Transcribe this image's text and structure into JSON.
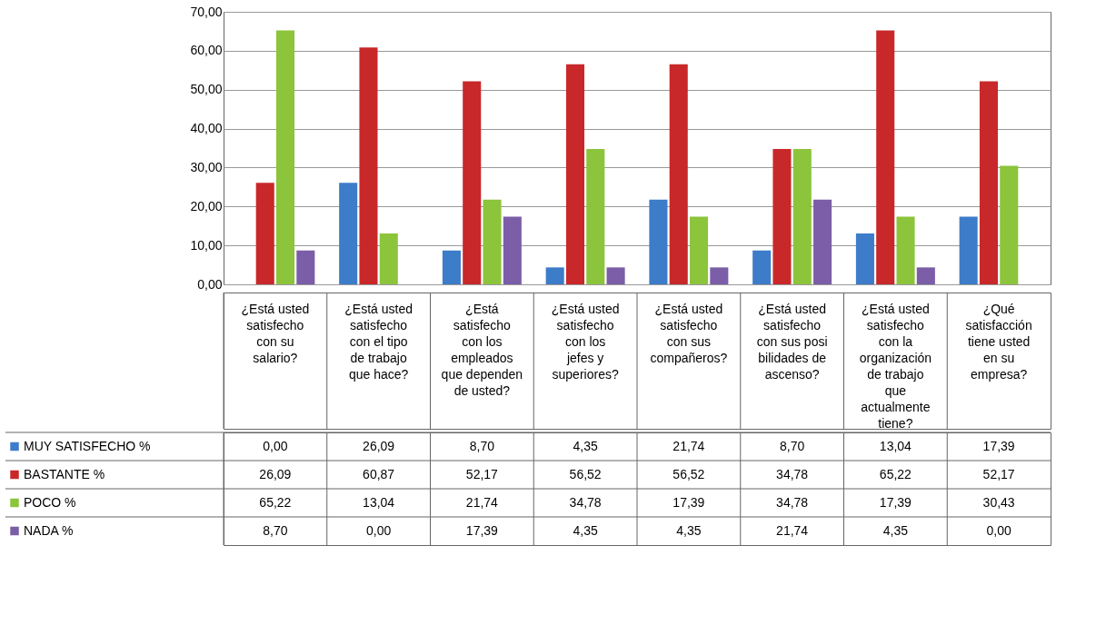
{
  "chart_data": {
    "type": "bar",
    "categories": [
      "¿Está usted satisfecho con su salario?",
      "¿Está usted satisfecho con el tipo de trabajo que hace?",
      "¿Está satisfecho con los empleados que dependen de usted?",
      "¿Está usted satisfecho con los jefes y superiores?",
      "¿Está usted satisfecho con sus compañeros?",
      "¿Está usted satisfecho con sus posibilidades de ascenso?",
      "¿Está usted satisfecho con la organización de trabajo que actualmente tiene?",
      "¿Qué satisfacción tiene usted en su empresa?"
    ],
    "series": [
      {
        "name": "MUY SATISFECHO %",
        "color": "#3d7cc9",
        "values": [
          0,
          26.09,
          8.7,
          4.35,
          21.74,
          8.7,
          13.04,
          17.39
        ],
        "value_labels": [
          "0,00",
          "26,09",
          "8,70",
          "4,35",
          "21,74",
          "8,70",
          "13,04",
          "17,39"
        ]
      },
      {
        "name": "BASTANTE %",
        "color": "#c8282a",
        "values": [
          26.09,
          60.87,
          52.17,
          56.52,
          56.52,
          34.78,
          65.22,
          52.17
        ],
        "value_labels": [
          "26,09",
          "60,87",
          "52,17",
          "56,52",
          "56,52",
          "34,78",
          "65,22",
          "52,17"
        ]
      },
      {
        "name": "POCO %",
        "color": "#8cc43c",
        "values": [
          65.22,
          13.04,
          21.74,
          34.78,
          17.39,
          34.78,
          17.39,
          30.43
        ],
        "value_labels": [
          "65,22",
          "13,04",
          "21,74",
          "34,78",
          "17,39",
          "34,78",
          "17,39",
          "30,43"
        ]
      },
      {
        "name": "NADA %",
        "color": "#7b5ea7",
        "values": [
          8.7,
          0,
          17.39,
          4.35,
          4.35,
          21.74,
          4.35,
          0
        ],
        "value_labels": [
          "8,70",
          "0,00",
          "17,39",
          "4,35",
          "4,35",
          "21,74",
          "4,35",
          "0,00"
        ]
      }
    ],
    "ylim": [
      0,
      70
    ],
    "yticks": [
      {
        "value": 0,
        "label": "0,00"
      },
      {
        "value": 10,
        "label": "10,00"
      },
      {
        "value": 20,
        "label": "20,00"
      },
      {
        "value": 30,
        "label": "30,00"
      },
      {
        "value": 40,
        "label": "40,00"
      },
      {
        "value": 50,
        "label": "50,00"
      },
      {
        "value": 60,
        "label": "60,00"
      },
      {
        "value": 70,
        "label": "70,00"
      }
    ],
    "grid": "y",
    "legend": "left"
  }
}
